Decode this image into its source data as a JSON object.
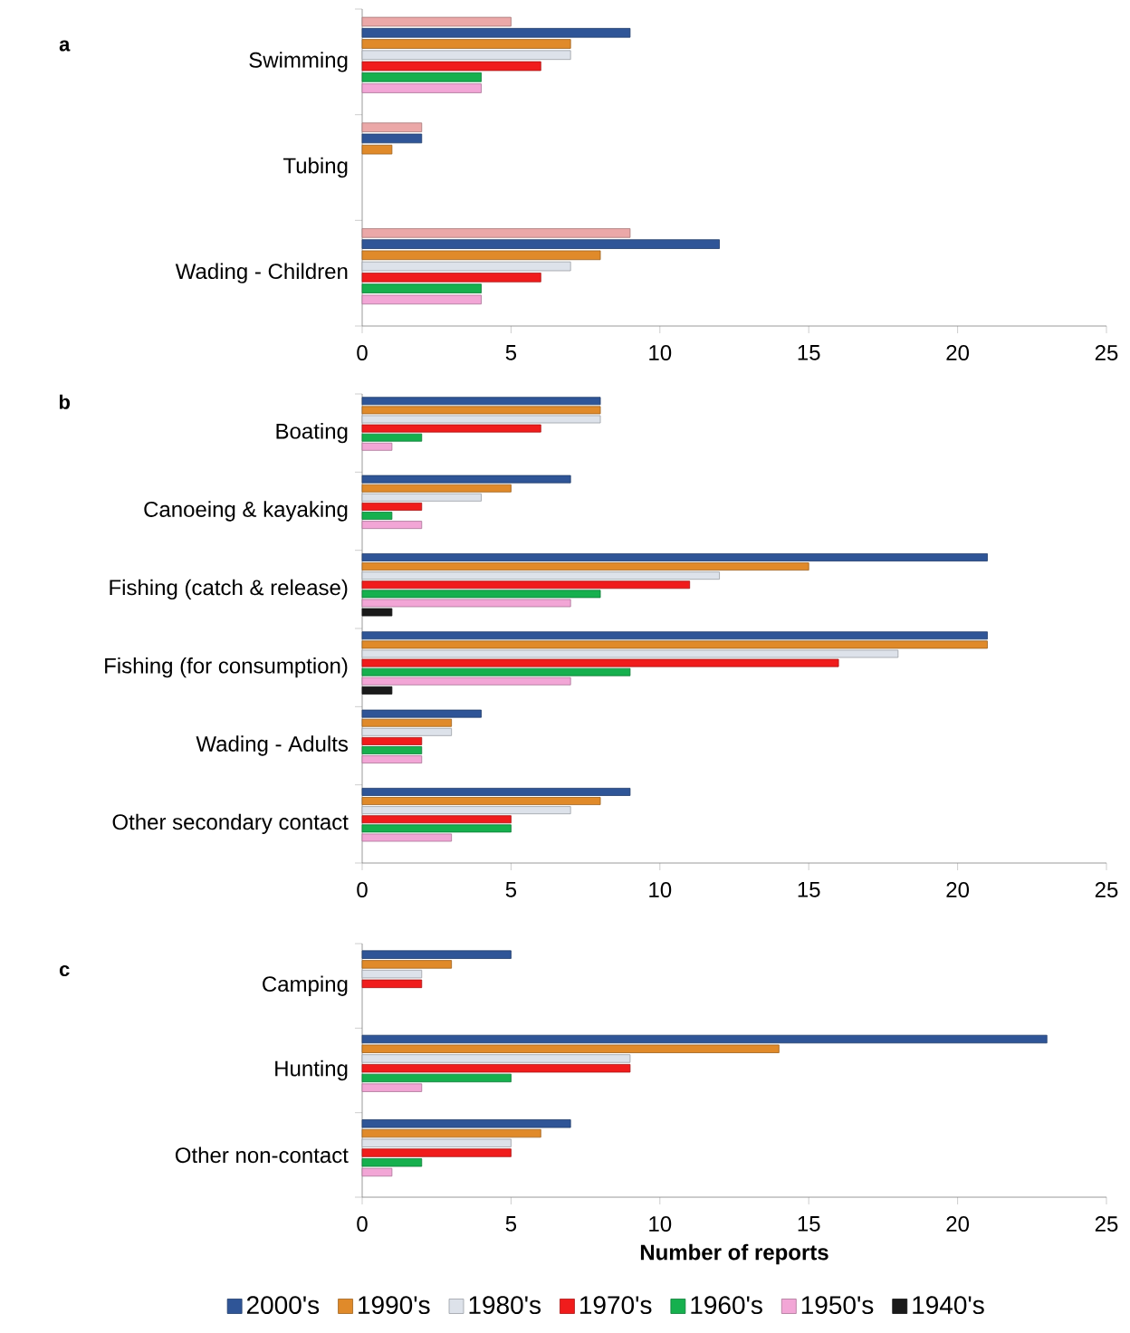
{
  "chart_data": [
    {
      "type": "bar",
      "orientation": "horizontal",
      "title": "a",
      "categories": [
        "Swimming",
        "Tubing",
        "Wading - Children"
      ],
      "xlim": [
        0,
        25
      ],
      "xticks": [
        0,
        5,
        10,
        15,
        20,
        25
      ],
      "series": [
        {
          "color": "#eba8a8",
          "values": [
            5,
            2,
            9
          ]
        },
        {
          "color": "#2f5597",
          "values": [
            9,
            2,
            12
          ]
        },
        {
          "color": "#e08a2a",
          "values": [
            7,
            1,
            8
          ]
        },
        {
          "color": "#dde2ea",
          "values": [
            7,
            null,
            7
          ]
        },
        {
          "color": "#f01c1c",
          "values": [
            6,
            null,
            6
          ]
        },
        {
          "color": "#16b04e",
          "values": [
            4,
            null,
            4
          ]
        },
        {
          "color": "#f2a6d6",
          "values": [
            4,
            null,
            4
          ]
        }
      ]
    },
    {
      "type": "bar",
      "orientation": "horizontal",
      "title": "b",
      "categories": [
        "Boating",
        "Canoeing & kayaking",
        "Fishing (catch & release)",
        "Fishing (for consumption)",
        "Wading - Adults",
        "Other secondary contact"
      ],
      "xlim": [
        0,
        25
      ],
      "xticks": [
        0,
        5,
        10,
        15,
        20,
        25
      ],
      "series": [
        {
          "color": "#2f5597",
          "values": [
            8,
            7,
            21,
            21,
            4,
            9
          ]
        },
        {
          "color": "#e08a2a",
          "values": [
            8,
            5,
            15,
            21,
            3,
            8
          ]
        },
        {
          "color": "#dde2ea",
          "values": [
            8,
            4,
            12,
            18,
            3,
            7
          ]
        },
        {
          "color": "#f01c1c",
          "values": [
            6,
            2,
            11,
            16,
            2,
            5
          ]
        },
        {
          "color": "#16b04e",
          "values": [
            2,
            1,
            8,
            9,
            2,
            5
          ]
        },
        {
          "color": "#f2a6d6",
          "values": [
            1,
            2,
            7,
            7,
            2,
            3
          ]
        },
        {
          "color": "#1a1a1a",
          "values": [
            null,
            null,
            1,
            1,
            null,
            null
          ]
        }
      ]
    },
    {
      "type": "bar",
      "orientation": "horizontal",
      "title": "c",
      "categories": [
        "Camping",
        "Hunting",
        "Other non-contact"
      ],
      "xlim": [
        0,
        25
      ],
      "xticks": [
        0,
        5,
        10,
        15,
        20,
        25
      ],
      "xlabel": "**Number of reports**",
      "legend": "bottom",
      "series": [
        {
          "name": "2000's",
          "color": "#2f5597",
          "values": [
            5,
            23,
            7
          ]
        },
        {
          "name": "1990's",
          "color": "#e08a2a",
          "values": [
            3,
            14,
            6
          ]
        },
        {
          "name": "1980's",
          "color": "#dde2ea",
          "values": [
            2,
            9,
            5
          ]
        },
        {
          "name": "1970's",
          "color": "#f01c1c",
          "values": [
            2,
            9,
            5
          ]
        },
        {
          "name": "1960's",
          "color": "#16b04e",
          "values": [
            null,
            5,
            2
          ]
        },
        {
          "name": "1950's",
          "color": "#f2a6d6",
          "values": [
            null,
            2,
            1
          ]
        },
        {
          "name": "1940's",
          "color": "#1a1a1a",
          "values": [
            null,
            null,
            null
          ]
        }
      ]
    }
  ]
}
